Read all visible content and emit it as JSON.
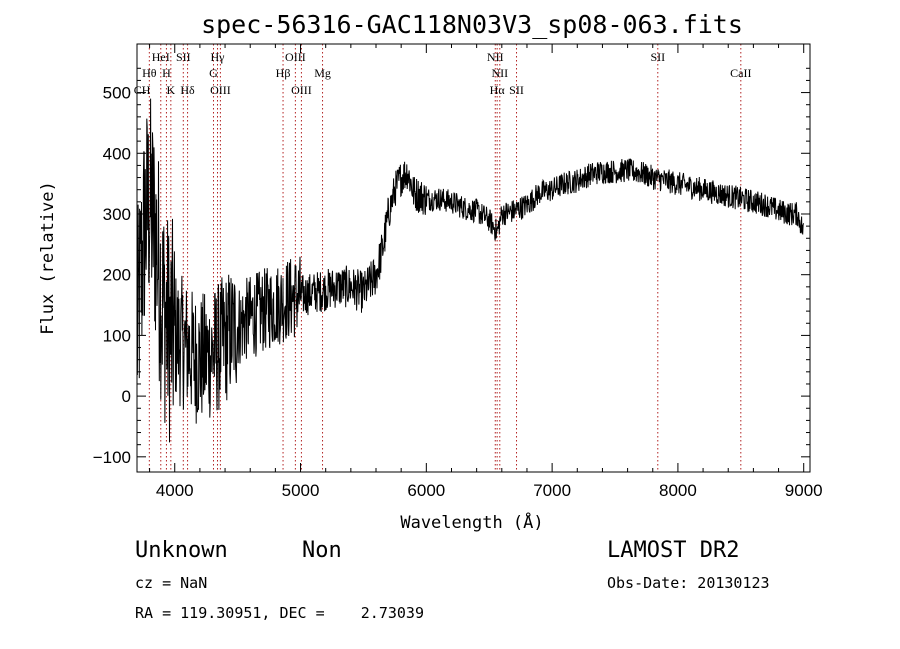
{
  "chart_data": {
    "type": "line",
    "title": "spec-56316-GAC118N03V3_sp08-063.fits",
    "xlabel": "Wavelength (Å)",
    "ylabel": "Flux (relative)",
    "xlim": [
      3700,
      9050
    ],
    "ylim": [
      -125,
      580
    ],
    "xticks": [
      4000,
      5000,
      6000,
      7000,
      8000,
      9000
    ],
    "yticks": [
      -100,
      0,
      100,
      200,
      300,
      400,
      500
    ],
    "xtick_labels": [
      "4000",
      "5000",
      "6000",
      "7000",
      "8000",
      "9000"
    ],
    "ytick_labels": [
      "−100",
      "0",
      "100",
      "200",
      "300",
      "400",
      "500"
    ],
    "series": [
      {
        "color": "#000000",
        "x": [
          3700,
          3760,
          3800,
          3850,
          3900,
          3950,
          4000,
          4050,
          4100,
          4150,
          4200,
          4250,
          4300,
          4350,
          4400,
          4450,
          4500,
          4600,
          4700,
          4800,
          4900,
          5000,
          5100,
          5200,
          5300,
          5400,
          5500,
          5600,
          5650,
          5700,
          5750,
          5800,
          5850,
          5900,
          5950,
          6000,
          6100,
          6200,
          6300,
          6400,
          6500,
          6563,
          6600,
          6700,
          6800,
          6850,
          6900,
          7000,
          7100,
          7200,
          7300,
          7400,
          7500,
          7600,
          7700,
          7800,
          7900,
          8000,
          8100,
          8200,
          8300,
          8400,
          8500,
          8600,
          8700,
          8800,
          8900,
          8950,
          9000
        ],
        "y": [
          100,
          280,
          320,
          260,
          160,
          110,
          100,
          90,
          80,
          65,
          60,
          65,
          70,
          80,
          95,
          105,
          115,
          130,
          140,
          150,
          160,
          165,
          170,
          175,
          180,
          180,
          170,
          200,
          240,
          300,
          340,
          360,
          370,
          335,
          330,
          325,
          325,
          320,
          310,
          305,
          290,
          270,
          300,
          305,
          315,
          325,
          335,
          340,
          350,
          355,
          365,
          370,
          370,
          372,
          368,
          360,
          355,
          350,
          345,
          340,
          335,
          330,
          325,
          320,
          315,
          305,
          300,
          300,
          270
        ]
      }
    ],
    "spectral_lines": [
      {
        "label": "Hθ",
        "x": 3798,
        "row": 2
      },
      {
        "label": "HeI",
        "x": 3889,
        "row": 1
      },
      {
        "label": "H",
        "x": 3934,
        "row": 2
      },
      {
        "label": "K",
        "x": 3969,
        "row": 3
      },
      {
        "label": "SII",
        "x": 4068,
        "row": 1
      },
      {
        "label": "Hδ",
        "x": 4102,
        "row": 3
      },
      {
        "label": "Hγ",
        "x": 4340,
        "row": 1
      },
      {
        "label": "G",
        "x": 4308,
        "row": 2
      },
      {
        "label": "OIII",
        "x": 4363,
        "row": 3
      },
      {
        "label": "Hβ",
        "x": 4861,
        "row": 2
      },
      {
        "label": "OIII",
        "x": 4959,
        "row": 1
      },
      {
        "label": "OIII",
        "x": 5007,
        "row": 3
      },
      {
        "label": "Mg",
        "x": 5175,
        "row": 2
      },
      {
        "label": "NII",
        "x": 6548,
        "row": 1
      },
      {
        "label": "NII",
        "x": 6584,
        "row": 2
      },
      {
        "label": "Hα",
        "x": 6563,
        "row": 3
      },
      {
        "label": "SII",
        "x": 6717,
        "row": 3
      },
      {
        "label": "SII",
        "x": 7840,
        "row": 1
      },
      {
        "label": "CaII",
        "x": 8500,
        "row": 2
      }
    ],
    "line_marker_color": "#b22222",
    "extra_line_labels": [
      {
        "label": "CH",
        "x": 3740,
        "row": 3
      }
    ]
  },
  "info": {
    "class_label": "Unknown",
    "subclass_label": "Non",
    "survey": "LAMOST DR2",
    "cz": "cz = NaN",
    "obs_date": "Obs-Date: 20130123",
    "coords": "RA = 119.30951, DEC =    2.73039"
  }
}
